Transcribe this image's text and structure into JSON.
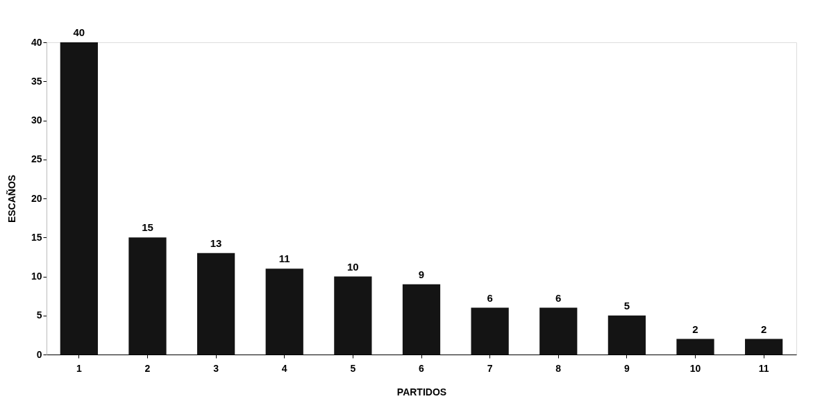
{
  "chart_data": {
    "type": "bar",
    "xlabel": "PARTIDOS",
    "ylabel": "ESCAÑOS",
    "categories": [
      "1",
      "2",
      "3",
      "4",
      "5",
      "6",
      "7",
      "8",
      "9",
      "10",
      "11"
    ],
    "values": [
      40,
      15,
      13,
      11,
      10,
      9,
      6,
      6,
      5,
      2,
      2
    ],
    "color": "#141414",
    "ylim": [
      0,
      40
    ],
    "yticks": [
      0,
      5,
      10,
      15,
      20,
      25,
      30,
      35,
      40
    ],
    "grid": false,
    "data_labels": true
  }
}
